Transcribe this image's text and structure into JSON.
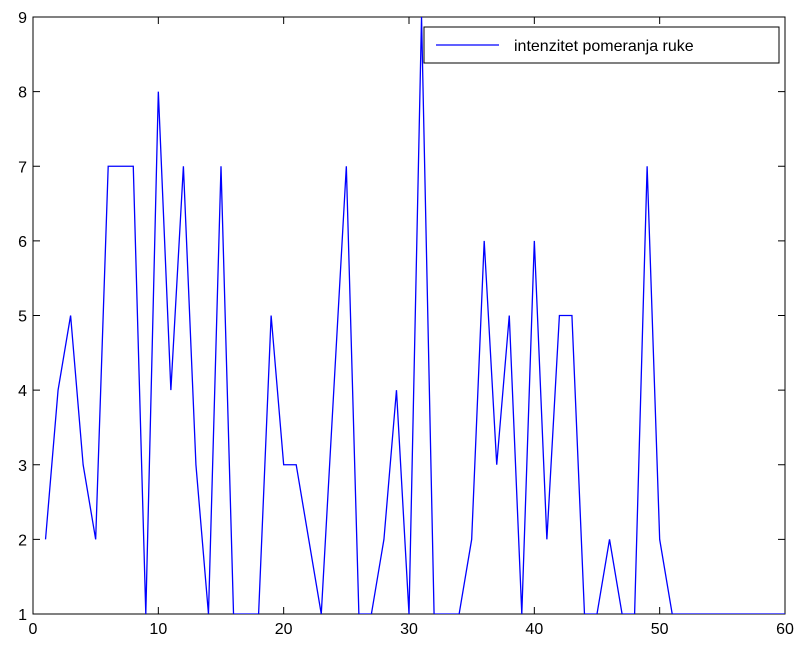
{
  "chart_data": {
    "type": "line",
    "title": "",
    "xlabel": "",
    "ylabel": "",
    "xlim": [
      0,
      60
    ],
    "ylim": [
      1,
      9
    ],
    "xticks": [
      0,
      10,
      20,
      30,
      40,
      50,
      60
    ],
    "yticks": [
      1,
      2,
      3,
      4,
      5,
      6,
      7,
      8,
      9
    ],
    "grid": false,
    "legend_position": "top-right",
    "series": [
      {
        "name": "intenzitet pomeranja ruke",
        "color": "#0000ff",
        "x": [
          1,
          2,
          3,
          4,
          5,
          6,
          7,
          8,
          9,
          10,
          11,
          12,
          13,
          14,
          15,
          16,
          17,
          18,
          19,
          20,
          21,
          22,
          23,
          24,
          25,
          26,
          27,
          28,
          29,
          30,
          31,
          32,
          33,
          34,
          35,
          36,
          37,
          38,
          39,
          40,
          41,
          42,
          43,
          44,
          45,
          46,
          47,
          48,
          49,
          50,
          51,
          52,
          53,
          54,
          55,
          56,
          57,
          58,
          59,
          60
        ],
        "y": [
          2,
          4,
          5,
          3,
          2,
          7,
          7,
          7,
          1,
          8,
          4,
          7,
          3,
          1,
          7,
          1,
          1,
          1,
          5,
          3,
          3,
          2,
          1,
          4,
          7,
          1,
          1,
          2,
          4,
          1,
          9,
          1,
          1,
          1,
          2,
          6,
          3,
          5,
          1,
          6,
          2,
          5,
          5,
          1,
          1,
          2,
          1,
          1,
          7,
          2,
          1,
          1,
          1,
          1,
          1,
          1,
          1,
          1,
          1,
          1
        ]
      }
    ]
  }
}
